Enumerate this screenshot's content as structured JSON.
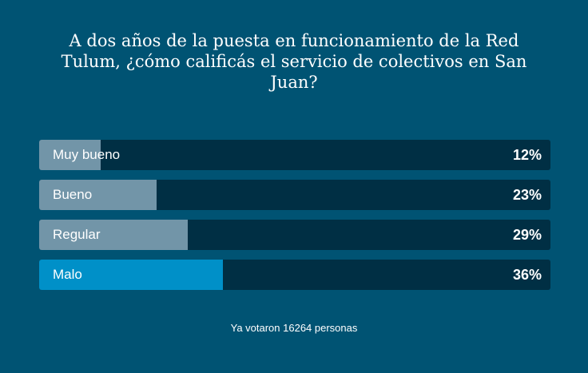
{
  "poll": {
    "question": "A dos años de la puesta en funcionamiento de la Red Tulum, ¿cómo calificás el servicio de colectivos en San Juan?",
    "options": [
      {
        "label": "Muy bueno",
        "percent": 12,
        "percent_label": "12%"
      },
      {
        "label": "Bueno",
        "percent": 23,
        "percent_label": "23%"
      },
      {
        "label": "Regular",
        "percent": 29,
        "percent_label": "29%"
      },
      {
        "label": "Malo",
        "percent": 36,
        "percent_label": "36%"
      }
    ],
    "votes_text": "Ya votaron 16264 personas"
  },
  "colors": {
    "background": "#005373",
    "track": "#002f44",
    "fill": "#7295a8",
    "leader_fill": "#0090c8"
  }
}
